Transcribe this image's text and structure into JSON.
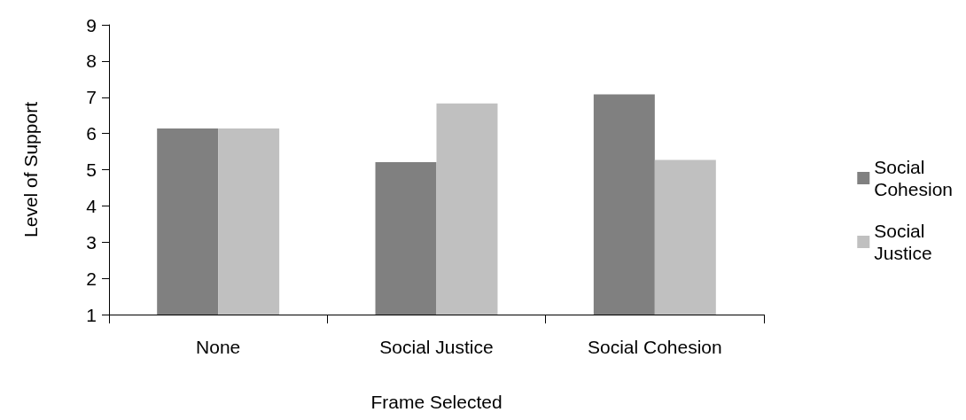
{
  "chart_data": {
    "type": "bar",
    "xlabel": "Frame Selected",
    "ylabel": "Level of Support",
    "categories": [
      "None",
      "Social Justice",
      "Social Cohesion"
    ],
    "series": [
      {
        "name": "Social\nCohesion",
        "color": "#808080",
        "values": [
          6.14,
          5.21,
          7.08
        ]
      },
      {
        "name": "Social\nJustice",
        "color": "#c0c0c0",
        "values": [
          6.14,
          6.83,
          5.27
        ]
      }
    ],
    "ylim": [
      1,
      9
    ],
    "yticks": [
      1,
      2,
      3,
      4,
      5,
      6,
      7,
      8,
      9
    ],
    "grid": false,
    "legend": "right"
  }
}
